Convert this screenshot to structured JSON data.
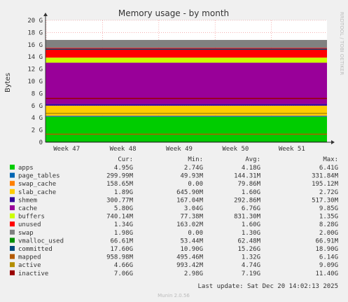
{
  "chart_data": {
    "type": "area",
    "title": "Memory usage - by month",
    "ylabel": "Bytes",
    "ylim": [
      0,
      20
    ],
    "y_unit": "G",
    "yticks": [
      "0",
      "2 G",
      "4 G",
      "6 G",
      "8 G",
      "10 G",
      "12 G",
      "14 G",
      "16 G",
      "18 G",
      "20 G"
    ],
    "xticks": [
      "Week 47",
      "Week 48",
      "Week 49",
      "Week 50",
      "Week 51"
    ],
    "grid": true,
    "legend_placement": "bottom",
    "column_headers": [
      "Cur:",
      "Min:",
      "Avg:",
      "Max:"
    ],
    "series": [
      {
        "name": "apps",
        "color": "#00cc00",
        "kind": "stack",
        "cur": "4.95G",
        "min": "2.74G",
        "avg": "4.18G",
        "max": "6.41G",
        "avg_value": 4.18
      },
      {
        "name": "page_tables",
        "color": "#0066b3",
        "kind": "stack",
        "cur": "299.99M",
        "min": "49.93M",
        "avg": "144.31M",
        "max": "331.84M",
        "avg_value": 0.14
      },
      {
        "name": "swap_cache",
        "color": "#ff8000",
        "kind": "stack",
        "cur": "158.65M",
        "min": "0.00",
        "avg": "79.86M",
        "max": "195.12M",
        "avg_value": 0.08
      },
      {
        "name": "slab_cache",
        "color": "#ffcc00",
        "kind": "stack",
        "cur": "1.89G",
        "min": "645.90M",
        "avg": "1.60G",
        "max": "2.72G",
        "avg_value": 1.6
      },
      {
        "name": "shmem",
        "color": "#330099",
        "kind": "stack",
        "cur": "300.77M",
        "min": "167.04M",
        "avg": "292.86M",
        "max": "517.30M",
        "avg_value": 0.29
      },
      {
        "name": "cache",
        "color": "#990099",
        "kind": "stack",
        "cur": "5.80G",
        "min": "3.04G",
        "avg": "6.76G",
        "max": "9.85G",
        "avg_value": 6.76
      },
      {
        "name": "buffers",
        "color": "#ccff00",
        "kind": "stack",
        "cur": "740.14M",
        "min": "77.38M",
        "avg": "831.30M",
        "max": "1.35G",
        "avg_value": 0.83
      },
      {
        "name": "unused",
        "color": "#ff0000",
        "kind": "stack",
        "cur": "1.34G",
        "min": "163.02M",
        "avg": "1.60G",
        "max": "8.28G",
        "avg_value": 1.6
      },
      {
        "name": "swap",
        "color": "#808080",
        "kind": "stack",
        "cur": "1.98G",
        "min": "0.00",
        "avg": "1.30G",
        "max": "2.00G",
        "avg_value": 1.3
      },
      {
        "name": "vmalloc_used",
        "color": "#008f00",
        "kind": "line",
        "cur": "66.61M",
        "min": "53.44M",
        "avg": "62.48M",
        "max": "66.91M",
        "avg_value": 0.06
      },
      {
        "name": "committed",
        "color": "#00487d",
        "kind": "line",
        "cur": "17.60G",
        "min": "10.90G",
        "avg": "15.26G",
        "max": "18.90G",
        "avg_value": 15.26
      },
      {
        "name": "mapped",
        "color": "#b35a00",
        "kind": "line",
        "cur": "958.98M",
        "min": "495.46M",
        "avg": "1.32G",
        "max": "6.14G",
        "avg_value": 1.32
      },
      {
        "name": "active",
        "color": "#b38f00",
        "kind": "line",
        "cur": "4.66G",
        "min": "993.42M",
        "avg": "4.74G",
        "max": "9.09G",
        "avg_value": 4.74
      },
      {
        "name": "inactive",
        "color": "#990000",
        "kind": "line",
        "cur": "7.06G",
        "min": "2.98G",
        "avg": "7.19G",
        "max": "11.40G",
        "avg_value": 7.19
      }
    ]
  },
  "side_label": "RRDTOOL / TOBI OETIKER",
  "footer": "Last update: Sat Dec 20 14:02:13 2025",
  "version": "Munin 2.0.56"
}
